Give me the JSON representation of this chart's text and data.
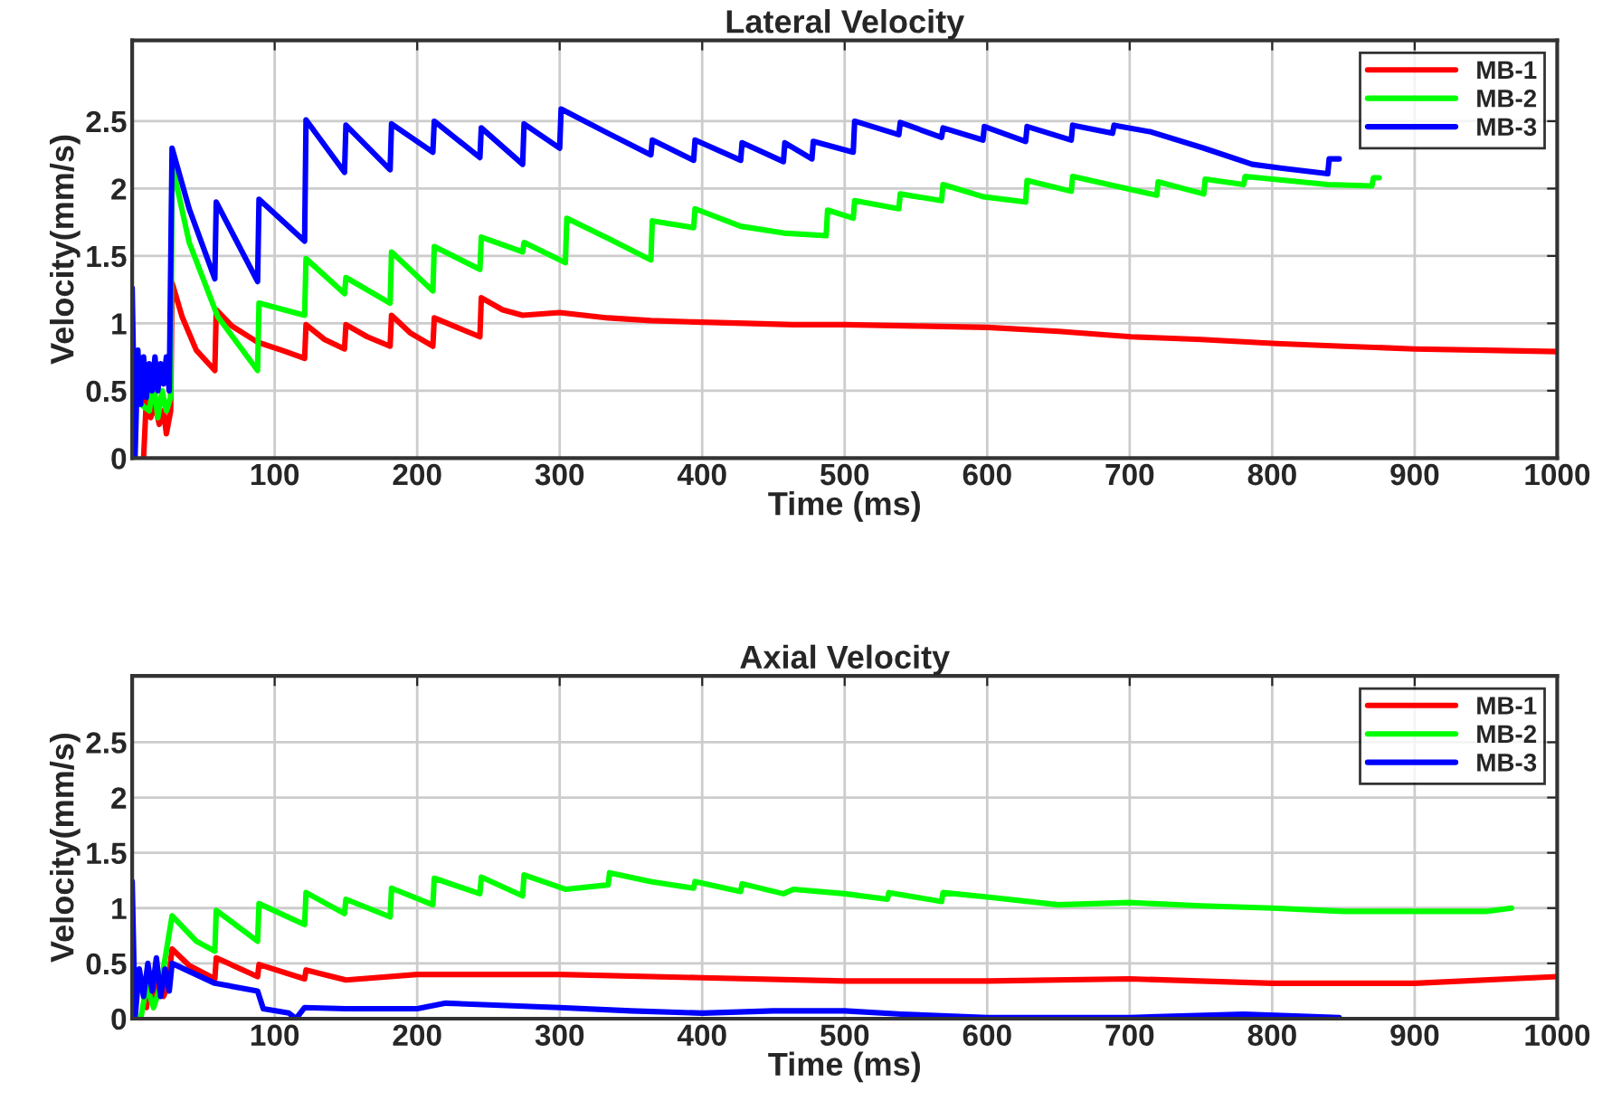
{
  "chart_data": [
    {
      "type": "line",
      "title": "Lateral Velocity",
      "xlabel": "Time (ms)",
      "ylabel": "Velocity(mm/s)",
      "xlim": [
        0,
        1000
      ],
      "xticks": [
        100,
        200,
        300,
        400,
        500,
        600,
        700,
        800,
        900,
        1000
      ],
      "ylim": [
        0,
        3.1
      ],
      "yticks": [
        0,
        0.5,
        1,
        1.5,
        2,
        2.5
      ],
      "grid": true,
      "legend": "top right",
      "line_style": "solid",
      "marker": "none",
      "series": [
        {
          "name": "MB-1",
          "color": "#ff0000",
          "x": [
            8,
            10,
            13,
            16,
            19,
            22,
            24,
            27,
            28,
            35,
            45,
            58,
            59,
            70,
            88,
            105,
            121,
            122,
            135,
            149,
            150,
            165,
            181,
            182,
            195,
            211,
            212,
            228,
            244,
            245,
            260,
            274,
            300,
            334,
            364,
            394,
            430,
            464,
            500,
            550,
            600,
            650,
            701,
            750,
            803,
            850,
            900,
            950,
            1000
          ],
          "values": [
            0,
            0.45,
            0.3,
            0.4,
            0.25,
            0.35,
            0.18,
            0.35,
            1.3,
            1.05,
            0.8,
            0.65,
            1.1,
            0.98,
            0.86,
            0.8,
            0.74,
            0.99,
            0.88,
            0.81,
            0.99,
            0.9,
            0.83,
            1.06,
            0.93,
            0.83,
            1.04,
            0.97,
            0.9,
            1.19,
            1.1,
            1.06,
            1.08,
            1.04,
            1.02,
            1.01,
            1.0,
            0.99,
            0.99,
            0.98,
            0.97,
            0.94,
            0.9,
            0.88,
            0.85,
            0.83,
            0.81,
            0.8,
            0.79
          ]
        },
        {
          "name": "MB-2",
          "color": "#00ff00",
          "x": [
            6,
            9,
            12,
            15,
            18,
            21,
            24,
            27,
            28,
            40,
            60,
            88,
            89,
            121,
            122,
            149,
            150,
            181,
            182,
            211,
            212,
            244,
            245,
            274,
            275,
            304,
            305,
            334,
            364,
            365,
            394,
            395,
            427,
            457,
            487,
            488,
            506,
            507,
            538,
            539,
            568,
            569,
            597,
            627,
            628,
            659,
            660,
            719,
            720,
            752,
            753,
            780,
            781,
            839,
            870,
            871,
            875
          ],
          "values": [
            0.4,
            null,
            0.35,
            0.55,
            0.3,
            0.5,
            0.35,
            0.45,
            2.18,
            1.6,
            1.05,
            0.65,
            1.15,
            1.06,
            1.48,
            1.22,
            1.34,
            1.15,
            1.53,
            1.24,
            1.57,
            1.4,
            1.64,
            1.53,
            1.6,
            1.45,
            1.78,
            1.63,
            1.47,
            1.76,
            1.71,
            1.85,
            1.72,
            1.67,
            1.65,
            1.84,
            1.78,
            1.91,
            1.85,
            1.96,
            1.91,
            2.03,
            1.94,
            1.9,
            2.06,
            1.98,
            2.09,
            1.95,
            2.05,
            1.96,
            2.07,
            2.03,
            2.09,
            2.03,
            2.02,
            2.08,
            2.08
          ]
        },
        {
          "name": "MB-3",
          "color": "#0000ff",
          "x": [
            0,
            2,
            4,
            6,
            8,
            10,
            12,
            14,
            16,
            18,
            20,
            22,
            24,
            26,
            28,
            40,
            58,
            59,
            88,
            89,
            121,
            122,
            149,
            150,
            181,
            182,
            211,
            212,
            244,
            245,
            274,
            275,
            300,
            301,
            334,
            364,
            365,
            394,
            395,
            427,
            428,
            457,
            458,
            477,
            478,
            506,
            507,
            538,
            539,
            568,
            569,
            597,
            598,
            627,
            628,
            659,
            660,
            688,
            689,
            715,
            752,
            786,
            807,
            839,
            840,
            847
          ],
          "values": [
            1.26,
            0,
            0.8,
            0.4,
            0.75,
            0.45,
            0.7,
            0.5,
            0.75,
            0.5,
            0.7,
            0.55,
            0.75,
            0.5,
            2.3,
            1.85,
            1.33,
            1.9,
            1.31,
            1.92,
            1.61,
            2.51,
            2.12,
            2.47,
            2.14,
            2.48,
            2.27,
            2.5,
            2.23,
            2.45,
            2.18,
            2.48,
            2.3,
            2.59,
            2.41,
            2.25,
            2.36,
            2.21,
            2.36,
            2.21,
            2.34,
            2.2,
            2.34,
            2.22,
            2.35,
            2.27,
            2.5,
            2.4,
            2.49,
            2.38,
            2.45,
            2.36,
            2.46,
            2.35,
            2.46,
            2.36,
            2.47,
            2.41,
            2.47,
            2.42,
            2.3,
            2.18,
            2.15,
            2.11,
            2.22,
            2.22
          ]
        }
      ]
    },
    {
      "type": "line",
      "title": "Axial Velocity",
      "xlabel": "Time (ms)",
      "ylabel": "Velocity(mm/s)",
      "xlim": [
        0,
        1000
      ],
      "xticks": [
        100,
        200,
        300,
        400,
        500,
        600,
        700,
        800,
        900,
        1000
      ],
      "ylim": [
        0,
        3.1
      ],
      "yticks": [
        0,
        0.5,
        1,
        1.5,
        2,
        2.5
      ],
      "grid": true,
      "legend": "top right",
      "line_style": "solid",
      "marker": "none",
      "series": [
        {
          "name": "MB-1",
          "color": "#ff0000",
          "x": [
            10,
            13,
            16,
            19,
            22,
            25,
            28,
            40,
            58,
            59,
            88,
            89,
            121,
            122,
            150,
            200,
            300,
            400,
            500,
            600,
            700,
            800,
            900,
            1000
          ],
          "values": [
            0.1,
            0.35,
            0.15,
            0.4,
            0.2,
            0.3,
            0.63,
            0.48,
            0.36,
            0.55,
            0.38,
            0.49,
            0.36,
            0.44,
            0.35,
            0.4,
            0.4,
            0.37,
            0.34,
            0.34,
            0.36,
            0.32,
            0.32,
            0.38
          ]
        },
        {
          "name": "MB-2",
          "color": "#00ff00",
          "x": [
            6,
            10,
            15,
            20,
            28,
            45,
            58,
            59,
            88,
            89,
            121,
            122,
            149,
            150,
            181,
            182,
            211,
            212,
            244,
            245,
            274,
            275,
            304,
            334,
            335,
            364,
            394,
            395,
            427,
            428,
            457,
            464,
            500,
            530,
            531,
            568,
            569,
            600,
            650,
            700,
            750,
            800,
            850,
            900,
            950,
            968
          ],
          "values": [
            0,
            0.3,
            0.1,
            0.3,
            0.93,
            0.7,
            0.61,
            0.98,
            0.7,
            1.04,
            0.85,
            1.14,
            0.95,
            1.08,
            0.92,
            1.18,
            1.03,
            1.27,
            1.13,
            1.28,
            1.11,
            1.3,
            1.17,
            1.21,
            1.32,
            1.24,
            1.18,
            1.24,
            1.15,
            1.22,
            1.13,
            1.17,
            1.13,
            1.08,
            1.14,
            1.06,
            1.14,
            1.1,
            1.03,
            1.05,
            1.02,
            1.0,
            0.97,
            0.97,
            0.97,
            1.0
          ]
        },
        {
          "name": "MB-3",
          "color": "#0000ff",
          "x": [
            0,
            2,
            5,
            8,
            11,
            14,
            17,
            20,
            23,
            26,
            28,
            58,
            88,
            92,
            110,
            115,
            121,
            150,
            200,
            220,
            300,
            350,
            400,
            450,
            500,
            540,
            600,
            700,
            780,
            847
          ],
          "values": [
            1.24,
            0,
            0.45,
            0.2,
            0.5,
            0.25,
            0.55,
            0.2,
            0.45,
            0.25,
            0.5,
            0.32,
            0.25,
            0.09,
            0.05,
            0,
            0.1,
            0.09,
            0.09,
            0.14,
            0.1,
            0.07,
            0.05,
            0.07,
            0.07,
            0.04,
            0.01,
            0.01,
            0.04,
            0.01
          ]
        }
      ]
    }
  ]
}
